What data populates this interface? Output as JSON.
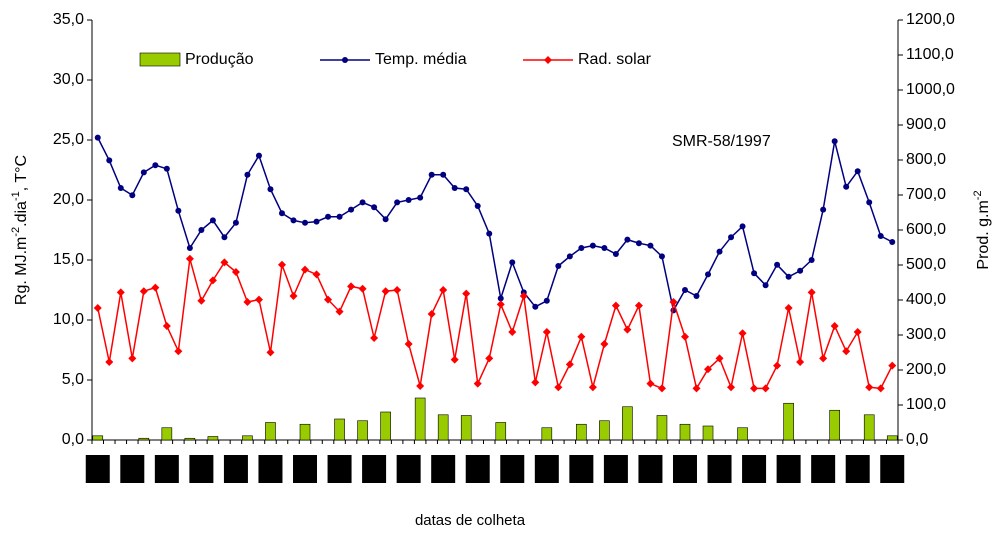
{
  "chart_data": {
    "type": "combo",
    "annotation": "SMR-58/1997",
    "x_label": "datas de colheta",
    "y_label": {
      "base": "Rg. MJ.m",
      "sup1": "-2",
      "mid": ".dia",
      "sup2": "-1",
      "end": ", T°C"
    },
    "y2_label": {
      "base": "Prod. g.m",
      "sup": "-2"
    },
    "categories": [
      null,
      null,
      null,
      null,
      null,
      null,
      null,
      null,
      null,
      null,
      null,
      null,
      null,
      null,
      null,
      null,
      null,
      null,
      null,
      null,
      null,
      null,
      null,
      null,
      null,
      null,
      null,
      null,
      null,
      null,
      null,
      null,
      null,
      null,
      null,
      null,
      null,
      null,
      null,
      null,
      null,
      null,
      null,
      null,
      null,
      null,
      null,
      null,
      null,
      null,
      null,
      null,
      null,
      null,
      null,
      null,
      null,
      null,
      null,
      null,
      null,
      null,
      null,
      null,
      null,
      null,
      null,
      null,
      null,
      null
    ],
    "ylim": [
      0,
      35
    ],
    "yticks": [
      {
        "value": 0,
        "label": "0,0"
      },
      {
        "value": 5,
        "label": "5,0"
      },
      {
        "value": 10,
        "label": "10,0"
      },
      {
        "value": 15,
        "label": "15,0"
      },
      {
        "value": 20,
        "label": "20,0"
      },
      {
        "value": 25,
        "label": "25,0"
      },
      {
        "value": 30,
        "label": "30,0"
      },
      {
        "value": 35,
        "label": "35,0"
      }
    ],
    "y2lim": [
      0,
      1200
    ],
    "y2ticks": [
      {
        "value": 0,
        "label": "0,0"
      },
      {
        "value": 100,
        "label": "100,0"
      },
      {
        "value": 200,
        "label": "200,0"
      },
      {
        "value": 300,
        "label": "300,0"
      },
      {
        "value": 400,
        "label": "400,0"
      },
      {
        "value": 500,
        "label": "500,0"
      },
      {
        "value": 600,
        "label": "600,0"
      },
      {
        "value": 700,
        "label": "700,0"
      },
      {
        "value": 800,
        "label": "800,0"
      },
      {
        "value": 900,
        "label": "900,0"
      },
      {
        "value": 1000,
        "label": "1000,0"
      },
      {
        "value": 1100,
        "label": "1100,0"
      },
      {
        "value": 1200,
        "label": "1200,0"
      }
    ],
    "series": [
      {
        "name": "Produção",
        "type": "bar",
        "axis": "y2",
        "color": "#99cc00",
        "values": [
          12,
          null,
          null,
          null,
          5,
          null,
          35,
          null,
          5,
          null,
          10,
          null,
          null,
          12,
          null,
          50,
          null,
          null,
          45,
          null,
          null,
          60,
          null,
          55,
          null,
          80,
          null,
          null,
          120,
          null,
          72,
          null,
          70,
          null,
          null,
          50,
          null,
          null,
          null,
          35,
          null,
          null,
          45,
          null,
          55,
          null,
          95,
          null,
          null,
          70,
          null,
          45,
          null,
          40,
          null,
          null,
          35,
          null,
          null,
          null,
          105,
          null,
          null,
          null,
          85,
          null,
          null,
          72,
          null,
          12
        ]
      },
      {
        "name": "Temp. média",
        "type": "line",
        "color": "#000080",
        "values": [
          25.2,
          23.3,
          21.0,
          20.4,
          22.3,
          22.9,
          22.6,
          19.1,
          16.0,
          17.5,
          18.3,
          16.9,
          18.1,
          22.1,
          23.7,
          20.9,
          18.9,
          18.3,
          18.1,
          18.2,
          18.6,
          18.6,
          19.2,
          19.8,
          19.4,
          18.4,
          19.8,
          20.0,
          20.2,
          22.1,
          22.1,
          21.0,
          20.9,
          19.5,
          17.2,
          11.8,
          14.8,
          12.3,
          11.1,
          11.6,
          14.5,
          15.3,
          16.0,
          16.2,
          16.0,
          15.5,
          16.7,
          16.4,
          16.2,
          15.3,
          10.8,
          12.5,
          12.0,
          13.8,
          15.7,
          16.9,
          17.8,
          13.9,
          12.9,
          14.6,
          13.6,
          14.1,
          15.0,
          19.2,
          24.9,
          21.1,
          22.4,
          19.8,
          17.0,
          16.5
        ]
      },
      {
        "name": "Rad. solar",
        "type": "line",
        "marker": "diamond",
        "color": "#ff0000",
        "values": [
          11.0,
          6.5,
          12.3,
          6.8,
          12.4,
          12.7,
          9.5,
          7.4,
          15.1,
          11.6,
          13.3,
          14.8,
          14.0,
          11.5,
          11.7,
          7.3,
          14.6,
          12.0,
          14.2,
          13.8,
          11.7,
          10.7,
          12.8,
          12.6,
          8.5,
          12.4,
          12.5,
          8.0,
          4.5,
          10.5,
          12.5,
          6.7,
          12.2,
          4.7,
          6.8,
          11.3,
          9.0,
          12.0,
          4.8,
          9.0,
          4.4,
          6.3,
          8.6,
          4.4,
          8.0,
          11.2,
          9.2,
          11.2,
          4.7,
          4.3,
          11.5,
          8.6,
          4.3,
          5.9,
          6.8,
          4.4,
          8.9,
          4.3,
          4.3,
          6.2,
          11.0,
          6.5,
          12.3,
          6.8,
          9.5,
          7.4,
          9.0,
          4.4,
          4.3,
          6.2
        ]
      }
    ]
  }
}
